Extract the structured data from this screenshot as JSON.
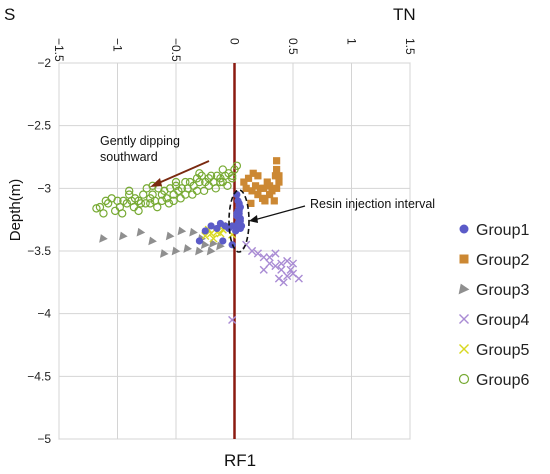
{
  "chart_data": {
    "type": "scatter",
    "title": "",
    "xlabel": "RF1",
    "ylabel": "Depth(m)",
    "direction_left": "S",
    "direction_right": "TN",
    "xlim": [
      -1.5,
      1.5
    ],
    "ylim": [
      -5,
      -2
    ],
    "x_ticks": [
      "−1.5",
      "−1",
      "−0.5",
      "0",
      "0.5",
      "1",
      "1.5"
    ],
    "y_ticks": [
      "−2",
      "−2.5",
      "−3",
      "−3.5",
      "−4",
      "−4.5",
      "−5"
    ],
    "grid": true,
    "legend_position": "right",
    "reference_line": {
      "x": 0,
      "color": "#8b1a10"
    },
    "annotations": {
      "dip": "Gently dipping\nsouthward",
      "resin": "Resin injection interval"
    },
    "series": [
      {
        "name": "Group1",
        "marker": "circle",
        "color": "#5b5bc8",
        "x": [
          0.02,
          0.03,
          0.04,
          0.05,
          0.03,
          0.04,
          0.02,
          0.05,
          0.04,
          0.03,
          0.06,
          0.05,
          0.02,
          0.04,
          0.03,
          0.05,
          0.01,
          0.04,
          -0.02,
          -0.05,
          -0.08,
          -0.12,
          -0.15,
          -0.2,
          -0.25,
          -0.1,
          -0.3,
          -0.02
        ],
        "y": [
          -3.05,
          -3.1,
          -3.12,
          -3.15,
          -3.18,
          -3.2,
          -3.22,
          -3.24,
          -3.26,
          -3.28,
          -3.3,
          -3.32,
          -3.2,
          -3.18,
          -3.3,
          -3.26,
          -3.34,
          -3.14,
          -3.3,
          -3.32,
          -3.3,
          -3.28,
          -3.32,
          -3.3,
          -3.34,
          -3.42,
          -3.42,
          -3.45
        ]
      },
      {
        "name": "Group2",
        "marker": "square",
        "color": "#cc8833",
        "x": [
          0.1,
          0.15,
          0.18,
          0.2,
          0.22,
          0.25,
          0.28,
          0.3,
          0.32,
          0.35,
          0.36,
          0.38,
          0.12,
          0.16,
          0.2,
          0.24,
          0.3,
          0.34,
          0.36,
          0.14,
          0.26,
          0.08,
          0.36,
          0.38
        ],
        "y": [
          -3.0,
          -3.02,
          -2.98,
          -3.05,
          -3.0,
          -3.0,
          -2.95,
          -2.98,
          -3.02,
          -2.9,
          -3.0,
          -2.95,
          -2.92,
          -2.88,
          -2.9,
          -3.08,
          -3.05,
          -3.1,
          -2.85,
          -3.12,
          -3.1,
          -2.95,
          -2.78,
          -2.9
        ]
      },
      {
        "name": "Group3",
        "marker": "triangle",
        "color": "#8f8f8f",
        "x": [
          -1.12,
          -0.95,
          -0.8,
          -0.7,
          -0.55,
          -0.45,
          -0.5,
          -0.35,
          -0.3,
          -0.25,
          -0.2,
          -0.18,
          -0.4,
          -0.6,
          -0.28,
          -0.12
        ],
        "y": [
          -3.4,
          -3.38,
          -3.35,
          -3.42,
          -3.38,
          -3.34,
          -3.5,
          -3.35,
          -3.5,
          -3.45,
          -3.5,
          -3.44,
          -3.48,
          -3.52,
          -3.4,
          -3.46
        ]
      },
      {
        "name": "Group4",
        "marker": "x",
        "color": "#a98bd4",
        "x": [
          0.1,
          0.15,
          0.2,
          0.25,
          0.3,
          0.35,
          0.4,
          0.45,
          0.5,
          0.55,
          0.3,
          0.35,
          0.4,
          0.45,
          0.25,
          0.5,
          0.38,
          0.42,
          0.48,
          -0.02
        ],
        "y": [
          -3.45,
          -3.5,
          -3.52,
          -3.55,
          -3.6,
          -3.62,
          -3.65,
          -3.7,
          -3.68,
          -3.72,
          -3.55,
          -3.52,
          -3.6,
          -3.58,
          -3.65,
          -3.6,
          -3.72,
          -3.75,
          -3.65,
          -4.05
        ]
      },
      {
        "name": "Group5",
        "marker": "x",
        "color": "#d8d820",
        "x": [
          -0.25,
          -0.2,
          -0.15,
          -0.1,
          -0.05,
          -0.18,
          -0.08,
          -0.12,
          -0.22,
          -0.02
        ],
        "y": [
          -3.38,
          -3.36,
          -3.35,
          -3.33,
          -3.3,
          -3.4,
          -3.32,
          -3.36,
          -3.33,
          -3.37
        ]
      },
      {
        "name": "Group6",
        "marker": "circle-open",
        "color": "#77aa33",
        "x": [
          -1.15,
          -1.1,
          -1.08,
          -1.05,
          -1.0,
          -0.98,
          -0.95,
          -0.92,
          -0.9,
          -0.88,
          -0.85,
          -0.82,
          -0.8,
          -0.78,
          -0.75,
          -0.72,
          -0.7,
          -0.68,
          -0.65,
          -0.62,
          -0.6,
          -0.58,
          -0.55,
          -0.52,
          -0.5,
          -0.48,
          -0.45,
          -0.42,
          -0.4,
          -0.38,
          -0.35,
          -0.32,
          -0.3,
          -0.28,
          -0.25,
          -0.22,
          -0.2,
          -0.18,
          -0.15,
          -0.12,
          -0.1,
          -0.08,
          -0.05,
          -0.02,
          0.0,
          -1.12,
          -1.02,
          -0.96,
          -0.86,
          -0.76,
          -0.66,
          -0.56,
          -0.46,
          -0.36,
          -0.26,
          -0.16,
          -0.06,
          -0.82,
          -0.72,
          -0.62,
          -0.52,
          -0.42,
          -0.32,
          -0.22,
          -0.12,
          -0.02,
          -0.9,
          -0.7,
          -0.5,
          -0.3,
          -0.1,
          -1.18,
          0.02
        ],
        "y": [
          -3.15,
          -3.1,
          -3.12,
          -3.08,
          -3.1,
          -3.15,
          -3.1,
          -3.12,
          -3.05,
          -3.1,
          -3.08,
          -3.1,
          -3.12,
          -3.05,
          -3.0,
          -3.08,
          -3.05,
          -3.1,
          -3.0,
          -3.05,
          -3.02,
          -3.08,
          -3.0,
          -3.05,
          -2.98,
          -3.02,
          -3.0,
          -2.95,
          -3.0,
          -2.95,
          -2.98,
          -2.92,
          -2.95,
          -2.9,
          -2.95,
          -2.92,
          -2.9,
          -2.95,
          -2.9,
          -2.92,
          -2.95,
          -2.9,
          -2.88,
          -2.92,
          -2.85,
          -3.2,
          -3.18,
          -3.2,
          -3.15,
          -3.12,
          -3.15,
          -3.12,
          -3.08,
          -3.05,
          -3.02,
          -3.0,
          -2.98,
          -3.18,
          -3.12,
          -3.1,
          -3.1,
          -3.05,
          -3.02,
          -2.98,
          -2.95,
          -2.9,
          -3.02,
          -2.98,
          -2.95,
          -2.88,
          -2.85,
          -3.16,
          -2.82
        ]
      }
    ]
  }
}
